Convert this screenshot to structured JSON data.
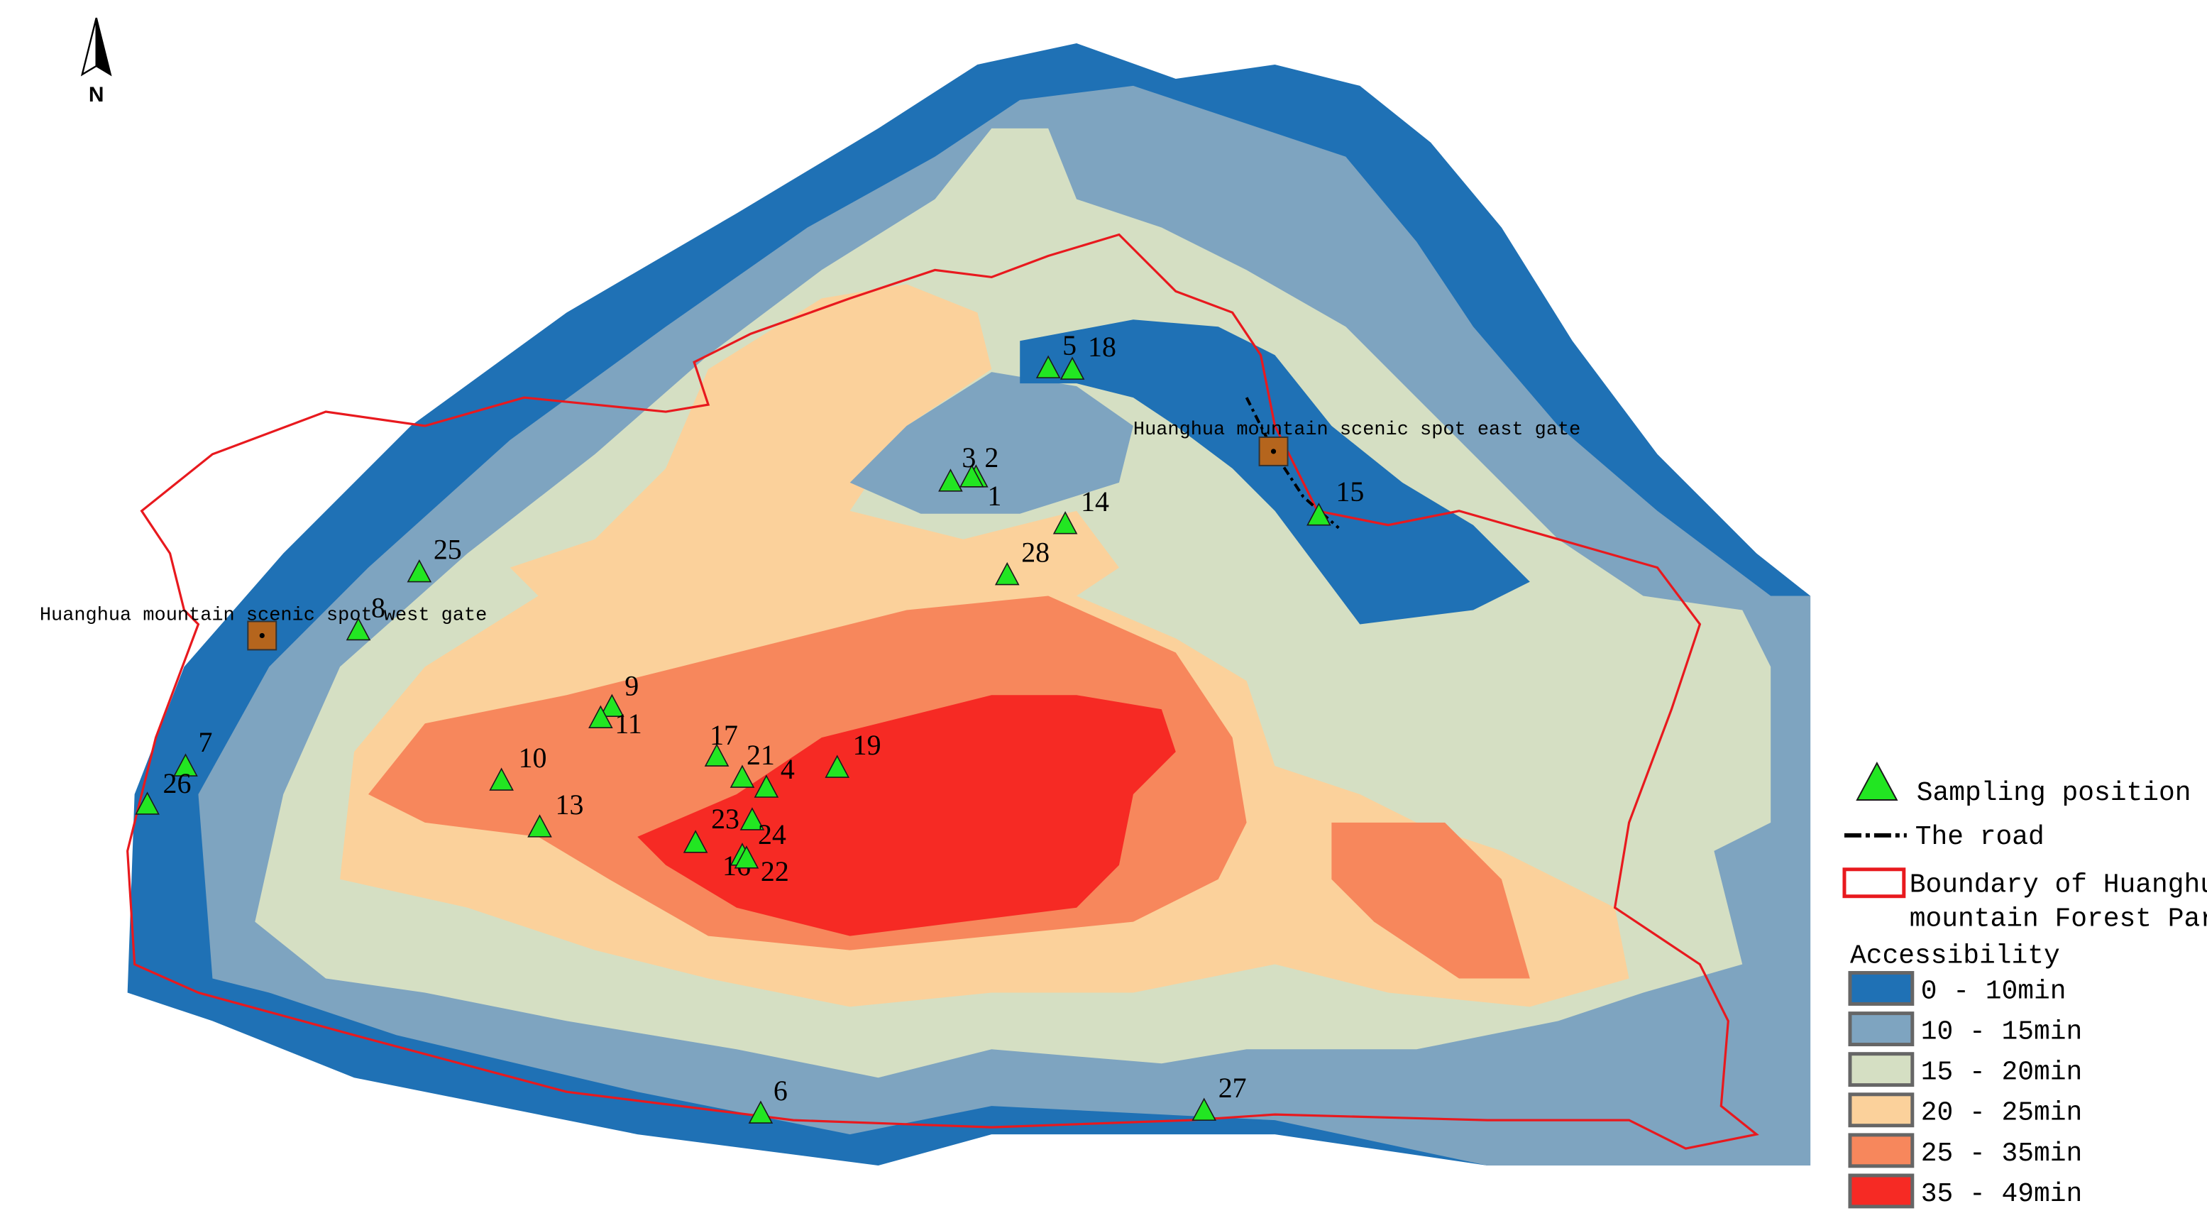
{
  "map": {
    "north": "N",
    "gates": [
      "Huanghua mountain scenic spot west gate",
      "Huanghua mountain scenic spot east gate"
    ],
    "sampling_points": [
      "1",
      "2",
      "3",
      "4",
      "5",
      "6",
      "7",
      "8",
      "9",
      "10",
      "11",
      "13",
      "14",
      "15",
      "16",
      "17",
      "18",
      "19",
      "21",
      "22",
      "23",
      "24",
      "25",
      "26",
      "27",
      "28"
    ],
    "legend": {
      "sampling": "Sampling position",
      "road": "The road",
      "boundary": [
        "Boundary of Huanghua",
        "mountain Forest Park"
      ],
      "accessibility_title": "Accessibility",
      "classes": [
        {
          "label": "0 - 10min",
          "color": "#1f71b5"
        },
        {
          "label": "10 - 15min",
          "color": "#7ea4c0"
        },
        {
          "label": "15 - 20min",
          "color": "#d5dfc3"
        },
        {
          "label": "20 - 25min",
          "color": "#fbd19b"
        },
        {
          "label": "25 - 35min",
          "color": "#f7875c"
        },
        {
          "label": "35 - 49min",
          "color": "#f62a24"
        }
      ]
    }
  }
}
